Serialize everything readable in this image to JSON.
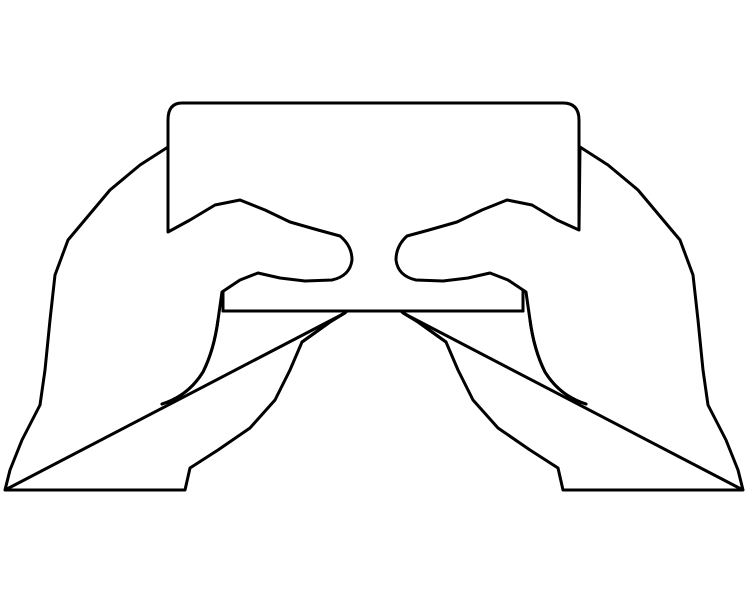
{
  "illustration": {
    "subject": "hands-holding-phone-landscape",
    "colors": {
      "stroke": "#000000",
      "fill": "#ffffff",
      "background": "#ffffff"
    }
  }
}
